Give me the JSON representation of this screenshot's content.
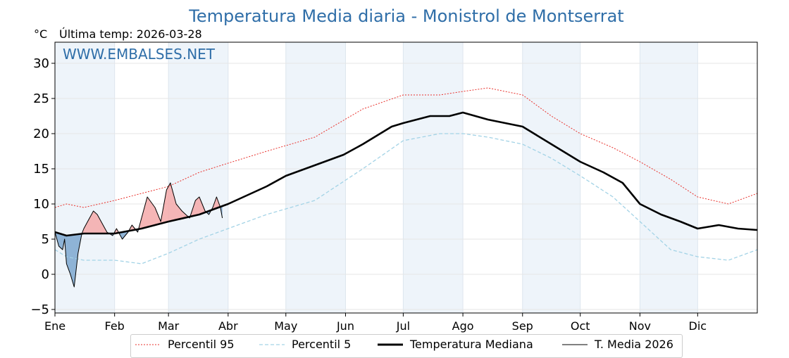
{
  "chart_data": {
    "type": "line",
    "title": "Temperatura Media diaria - Monistrol de Montserrat",
    "units_label": "°C",
    "last_temp_label": "Última temp: 2026-03-28",
    "watermark": "WWW.EMBALSES.NET",
    "ylim": [
      -5.5,
      33
    ],
    "yticks": [
      -5,
      0,
      5,
      10,
      15,
      20,
      25,
      30
    ],
    "ytick_labels": [
      "−5",
      "0",
      "5",
      "10",
      "15",
      "20",
      "25",
      "30"
    ],
    "xlim": [
      0,
      365
    ],
    "months": [
      "Ene",
      "Feb",
      "Mar",
      "Abr",
      "May",
      "Jun",
      "Jul",
      "Ago",
      "Sep",
      "Oct",
      "Nov",
      "Dic"
    ],
    "month_starts": [
      0,
      31,
      59,
      90,
      120,
      151,
      181,
      212,
      243,
      273,
      304,
      334
    ],
    "grid": true,
    "legend_position": "bottom",
    "colors": {
      "p95": "#e8302b",
      "p5": "#a3d3e6",
      "median": "#000000",
      "current": "#000000",
      "above_fill": "#f4a9a9",
      "below_fill": "#7ca7cf",
      "band": "#eef4fa",
      "title": "#2f6ea8"
    },
    "series": [
      {
        "name": "Percentil 95",
        "key": "p95",
        "x": [
          0,
          6,
          15,
          31,
          45,
          59,
          75,
          90,
          110,
          135,
          160,
          181,
          200,
          212,
          225,
          243,
          258,
          273,
          290,
          304,
          320,
          334,
          350,
          365
        ],
        "values": [
          9.5,
          10,
          9.5,
          10.5,
          11.5,
          12.5,
          14.5,
          15.8,
          17.5,
          19.5,
          23.5,
          25.5,
          25.5,
          26,
          26.5,
          25.5,
          22.5,
          20,
          18,
          16,
          13.5,
          11,
          10,
          11.5
        ]
      },
      {
        "name": "Percentil 5",
        "key": "p5",
        "x": [
          0,
          6,
          15,
          31,
          45,
          59,
          75,
          90,
          110,
          135,
          160,
          181,
          200,
          212,
          225,
          243,
          258,
          273,
          290,
          304,
          320,
          334,
          350,
          365
        ],
        "values": [
          3.5,
          2.5,
          2,
          2,
          1.5,
          3,
          5,
          6.5,
          8.5,
          10.5,
          15,
          19,
          20,
          20,
          19.5,
          18.5,
          16.5,
          14,
          11,
          7.5,
          3.5,
          2.5,
          2,
          3.5
        ]
      },
      {
        "name": "Temperatura Mediana",
        "key": "median",
        "x": [
          0,
          6,
          15,
          31,
          45,
          59,
          75,
          90,
          110,
          120,
          135,
          150,
          160,
          175,
          181,
          195,
          205,
          212,
          225,
          243,
          258,
          273,
          285,
          295,
          304,
          315,
          325,
          334,
          345,
          355,
          365
        ],
        "values": [
          6,
          5.5,
          5.8,
          5.8,
          6.5,
          7.5,
          8.5,
          10,
          12.5,
          14,
          15.5,
          17,
          18.5,
          21,
          21.5,
          22.5,
          22.5,
          23,
          22,
          21,
          18.5,
          16,
          14.5,
          13,
          10,
          8.5,
          7.5,
          6.5,
          7,
          6.5,
          6.3
        ]
      },
      {
        "name": "T. Media 2026",
        "key": "current",
        "x": [
          0,
          2,
          4,
          5,
          6,
          8,
          10,
          12,
          14,
          15,
          17,
          20,
          22,
          25,
          27,
          30,
          32,
          35,
          38,
          40,
          43,
          45,
          48,
          52,
          55,
          58,
          60,
          63,
          66,
          68,
          70,
          73,
          75,
          78,
          80,
          82,
          84,
          86,
          87
        ],
        "values": [
          6,
          4,
          3.5,
          5,
          1.5,
          0,
          -1.8,
          3,
          5.8,
          6.5,
          7.5,
          9,
          8.5,
          7,
          6,
          5.5,
          6.5,
          5,
          6,
          7,
          6,
          8,
          11,
          9.5,
          7.5,
          12,
          13,
          10,
          9,
          8.5,
          8,
          10.5,
          11,
          9,
          8.5,
          9.5,
          11,
          9.5,
          8
        ]
      }
    ]
  }
}
